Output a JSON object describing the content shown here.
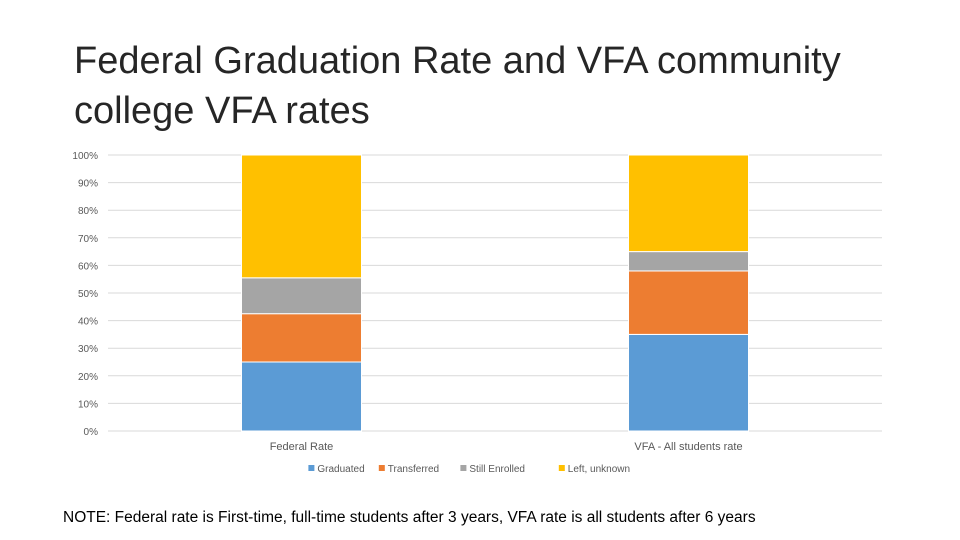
{
  "title": "Federal Graduation Rate and VFA community college VFA rates",
  "note": "NOTE: Federal rate is First-time, full-time students after 3 years, VFA rate is all students after 6 years",
  "colors": {
    "graduated": "#5b9bd5",
    "transferred": "#ed7d31",
    "still_enrolled": "#a5a5a5",
    "left_unknown": "#ffc000",
    "gridline": "#d9d9d9",
    "tick_text": "#595959"
  },
  "chart_data": {
    "type": "bar",
    "stacked": true,
    "percent_stacked": true,
    "categories": [
      "Federal Rate",
      "VFA - All students rate"
    ],
    "series": [
      {
        "name": "Graduated",
        "values": [
          25,
          35
        ]
      },
      {
        "name": "Transferred",
        "values": [
          17.5,
          23
        ]
      },
      {
        "name": "Still Enrolled",
        "values": [
          13,
          7
        ]
      },
      {
        "name": "Left, unknown",
        "values": [
          44.5,
          35
        ]
      }
    ],
    "ylim": [
      0,
      100
    ],
    "yticks": [
      "0%",
      "10%",
      "20%",
      "30%",
      "40%",
      "50%",
      "60%",
      "70%",
      "80%",
      "90%",
      "100%"
    ],
    "legend_position": "bottom",
    "grid": true,
    "xlabel": "",
    "ylabel": ""
  }
}
